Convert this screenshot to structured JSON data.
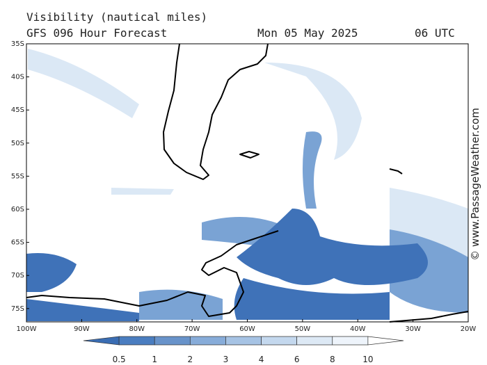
{
  "header": {
    "title": "Visibility (nautical miles)",
    "subtitle": "GFS 096 Hour Forecast",
    "date": "Mon 05 May 2025",
    "time": "06 UTC"
  },
  "map": {
    "lat_labels": [
      "35S",
      "40S",
      "45S",
      "50S",
      "55S",
      "60S",
      "65S",
      "70S",
      "75S"
    ],
    "lon_labels": [
      "100W",
      "90W",
      "80W",
      "70W",
      "60W",
      "50W",
      "40W",
      "30W",
      "20W"
    ]
  },
  "colorbar": {
    "labels": [
      "0.5",
      "1",
      "2",
      "3",
      "4",
      "6",
      "8",
      "10"
    ],
    "colors": [
      "#3a6db3",
      "#4a7dc0",
      "#6893ca",
      "#87acd9",
      "#a6c3e4",
      "#c4d8ee",
      "#dde9f5",
      "#eef4fb",
      "#ffffff"
    ]
  },
  "credit": "© www.PassageWeather.com"
}
